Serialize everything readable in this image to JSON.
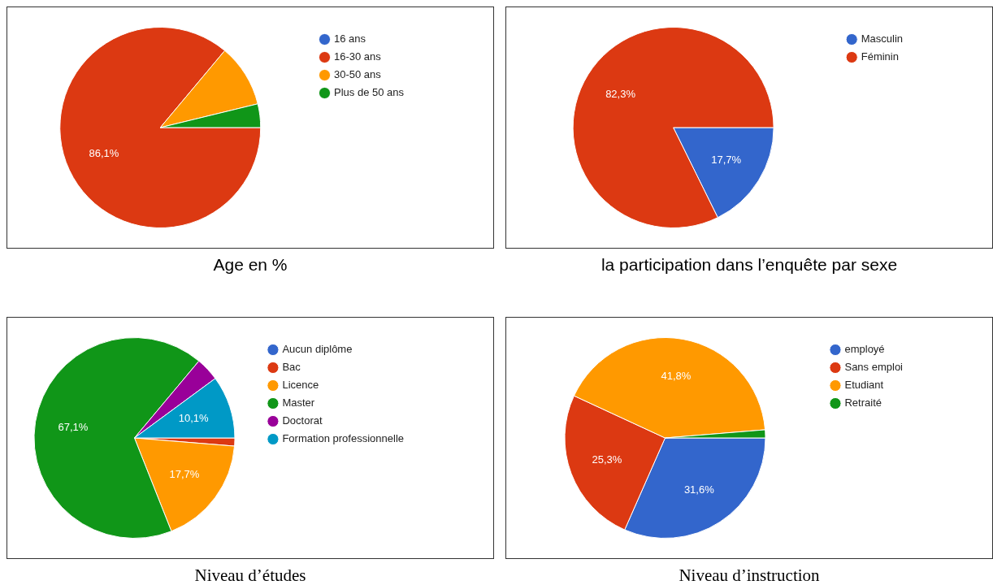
{
  "chart_data": [
    {
      "type": "pie",
      "title": "Age en %",
      "categories": [
        "16 ans",
        "16-30 ans",
        "30-50 ans",
        "Plus de 50 ans"
      ],
      "values": [
        0,
        86.1,
        10.1,
        3.8
      ],
      "colors": [
        "#3366cc",
        "#dc3912",
        "#ff9900",
        "#109618"
      ],
      "value_labels": [
        null,
        "86,1%",
        null,
        null
      ],
      "legend": "right"
    },
    {
      "type": "pie",
      "title": "la participation dans l’enquête par sexe",
      "categories": [
        "Masculin",
        "Féminin"
      ],
      "values": [
        17.7,
        82.3
      ],
      "colors": [
        "#3366cc",
        "#dc3912"
      ],
      "value_labels": [
        "17,7%",
        "82,3%"
      ],
      "legend": "right"
    },
    {
      "type": "pie",
      "title": "Niveau d’études",
      "categories": [
        "Aucun diplôme",
        "Bac",
        "Licence",
        "Master",
        "Doctorat",
        "Formation professionnelle"
      ],
      "values": [
        0,
        1.3,
        17.7,
        67.1,
        3.8,
        10.1
      ],
      "colors": [
        "#3366cc",
        "#dc3912",
        "#ff9900",
        "#109618",
        "#990099",
        "#0099c6"
      ],
      "value_labels": [
        null,
        null,
        "17,7%",
        "67,1%",
        null,
        "10,1%"
      ],
      "legend": "right"
    },
    {
      "type": "pie",
      "title": "Niveau d’instruction",
      "categories": [
        "employé",
        "Sans emploi",
        "Etudiant",
        "Retraité"
      ],
      "values": [
        31.6,
        25.3,
        41.8,
        1.3
      ],
      "colors": [
        "#3366cc",
        "#dc3912",
        "#ff9900",
        "#109618"
      ],
      "value_labels": [
        "31,6%",
        "25,3%",
        "41,8%",
        null
      ],
      "legend": "right"
    }
  ]
}
